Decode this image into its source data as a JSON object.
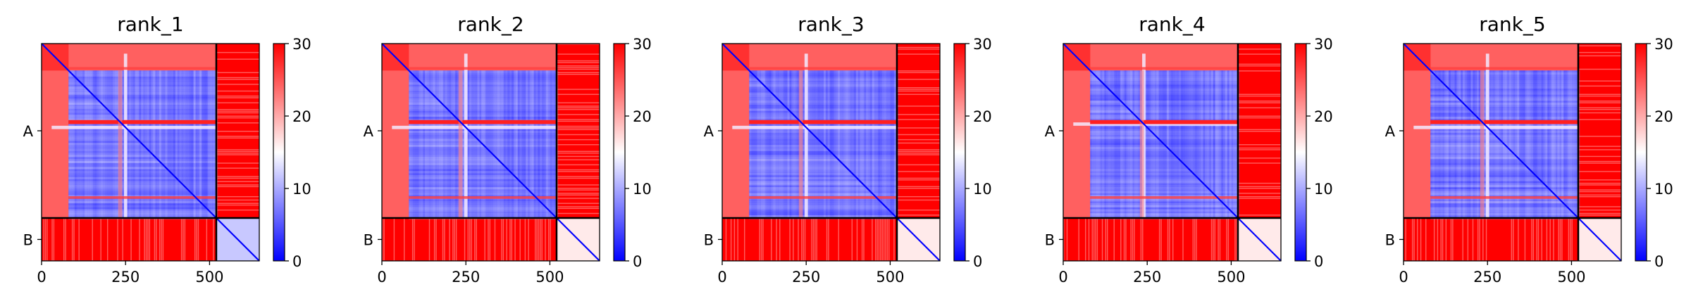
{
  "chart_data": {
    "type": "heatmap",
    "description_free": true,
    "colormap": {
      "low": "#0000ff",
      "mid": "#ffffff",
      "high": "#ff0000"
    },
    "color_range": [
      0,
      30
    ],
    "colorbar_ticks": [
      "0",
      "10",
      "20",
      "30"
    ],
    "x_ticks": [
      "0",
      "250",
      "500"
    ],
    "x_tick_values": [
      0,
      250,
      500
    ],
    "x_range": [
      0,
      648
    ],
    "chains": [
      {
        "label": "A",
        "start": 0,
        "end": 520
      },
      {
        "label": "B",
        "start": 520,
        "end": 648
      }
    ],
    "panels": [
      {
        "title": "rank_1"
      },
      {
        "title": "rank_2"
      },
      {
        "title": "rank_3"
      },
      {
        "title": "rank_4"
      },
      {
        "title": "rank_5"
      }
    ]
  }
}
